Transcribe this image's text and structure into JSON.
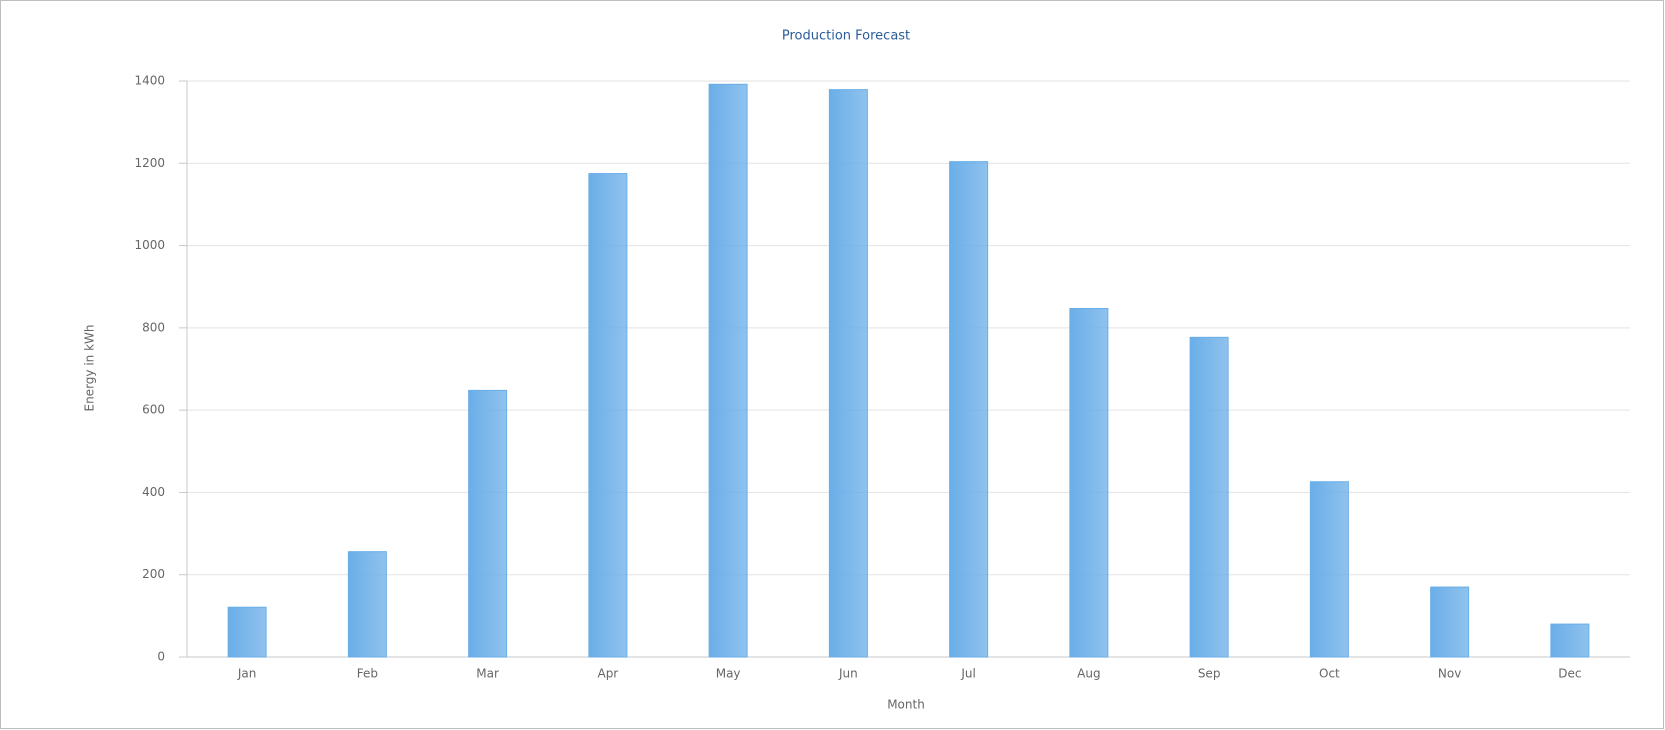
{
  "chart_data": {
    "type": "bar",
    "title": "Production Forecast",
    "x_label": "Month",
    "y_label": "Energy in kWh",
    "categories": [
      "Jan",
      "Feb",
      "Mar",
      "Apr",
      "May",
      "Jun",
      "Jul",
      "Aug",
      "Sep",
      "Oct",
      "Nov",
      "Dec"
    ],
    "values": [
      121,
      256,
      648,
      1175,
      1392,
      1379,
      1204,
      847,
      777,
      426,
      170,
      80
    ],
    "color": "#6aaee8",
    "ylim": [
      0,
      1400
    ],
    "yticks": [
      0,
      200,
      400,
      600,
      800,
      1000,
      1200,
      1400
    ],
    "grid": true
  }
}
